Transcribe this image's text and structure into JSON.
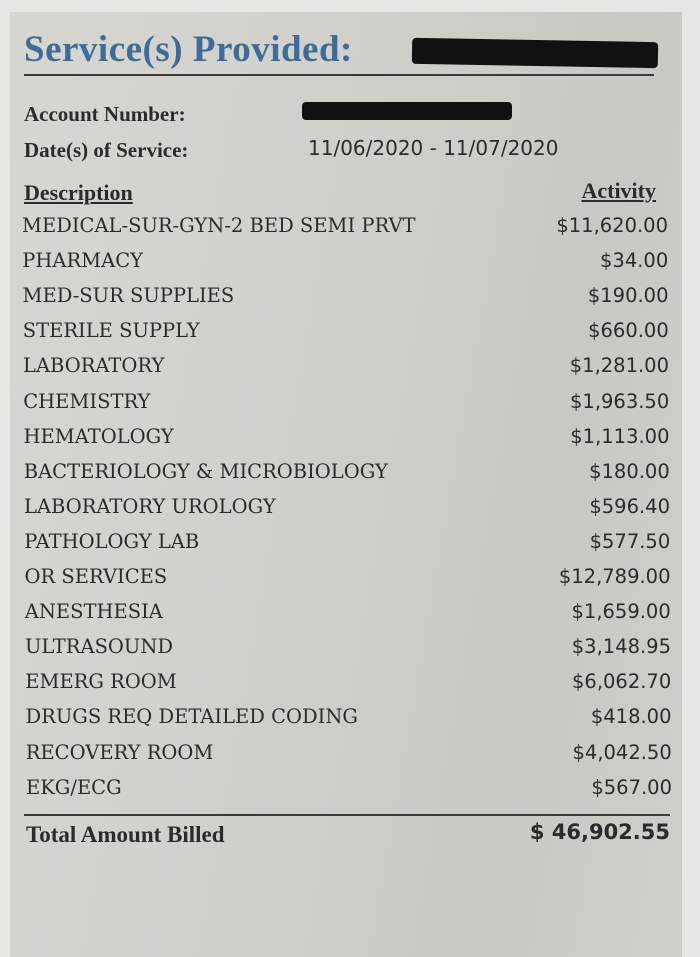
{
  "header": {
    "title": "Service(s) Provided:",
    "title_color": "#3f6b98",
    "patient_name_redacted": true
  },
  "account": {
    "account_label": "Account Number:",
    "account_value_redacted": true,
    "dates_label": "Date(s) of Service:",
    "dates_value": "11/06/2020 - 11/07/2020"
  },
  "table": {
    "col_description": "Description",
    "col_activity": "Activity",
    "rows": [
      {
        "description": "MEDICAL-SUR-GYN-2 BED SEMI PRVT",
        "amount": "$11,620.00"
      },
      {
        "description": "PHARMACY",
        "amount": "$34.00"
      },
      {
        "description": "MED-SUR SUPPLIES",
        "amount": "$190.00"
      },
      {
        "description": "STERILE SUPPLY",
        "amount": "$660.00"
      },
      {
        "description": "LABORATORY",
        "amount": "$1,281.00"
      },
      {
        "description": "CHEMISTRY",
        "amount": "$1,963.50"
      },
      {
        "description": "HEMATOLOGY",
        "amount": "$1,113.00"
      },
      {
        "description": "BACTERIOLOGY & MICROBIOLOGY",
        "amount": "$180.00"
      },
      {
        "description": "LABORATORY UROLOGY",
        "amount": "$596.40"
      },
      {
        "description": "PATHOLOGY LAB",
        "amount": "$577.50"
      },
      {
        "description": "OR SERVICES",
        "amount": "$12,789.00"
      },
      {
        "description": "ANESTHESIA",
        "amount": "$1,659.00"
      },
      {
        "description": "ULTRASOUND",
        "amount": "$3,148.95"
      },
      {
        "description": "EMERG ROOM",
        "amount": "$6,062.70"
      },
      {
        "description": "DRUGS REQ DETAILED CODING",
        "amount": "$418.00"
      },
      {
        "description": "RECOVERY ROOM",
        "amount": "$4,042.50"
      },
      {
        "description": "EKG/ECG",
        "amount": "$567.00"
      }
    ],
    "total_label": "Total Amount Billed",
    "total_value": "$ 46,902.55"
  }
}
